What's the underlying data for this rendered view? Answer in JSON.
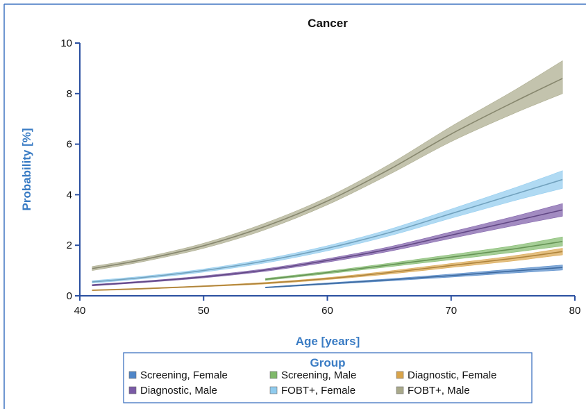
{
  "chart_data": {
    "type": "line",
    "title": "Cancer",
    "xlabel": "Age [years]",
    "ylabel": "Probability [%]",
    "xlim": [
      40,
      80
    ],
    "ylim": [
      0,
      10
    ],
    "x_ticks": [
      40,
      50,
      60,
      70,
      80
    ],
    "y_ticks": [
      0,
      2,
      4,
      6,
      8,
      10
    ],
    "grid": false,
    "legend": {
      "title": "Group",
      "placement": "bottom"
    },
    "series": [
      {
        "name": "Screening, Female",
        "color": "#4f86c8",
        "x": [
          55,
          60,
          65,
          70,
          75,
          79
        ],
        "y": [
          0.33,
          0.48,
          0.63,
          0.8,
          0.98,
          1.12
        ],
        "lower": [
          0.31,
          0.45,
          0.59,
          0.74,
          0.9,
          1.02
        ],
        "upper": [
          0.35,
          0.51,
          0.67,
          0.86,
          1.06,
          1.22
        ]
      },
      {
        "name": "Screening, Male",
        "color": "#7fb96a",
        "x": [
          55,
          60,
          65,
          70,
          75,
          79
        ],
        "y": [
          0.65,
          0.92,
          1.22,
          1.53,
          1.85,
          2.15
        ],
        "lower": [
          0.61,
          0.87,
          1.15,
          1.43,
          1.72,
          1.97
        ],
        "upper": [
          0.69,
          0.97,
          1.29,
          1.63,
          1.98,
          2.33
        ]
      },
      {
        "name": "Diagnostic, Female",
        "color": "#d9a44a",
        "x": [
          41,
          45,
          50,
          55,
          60,
          65,
          70,
          75,
          79
        ],
        "y": [
          0.22,
          0.28,
          0.38,
          0.5,
          0.68,
          0.92,
          1.2,
          1.48,
          1.75
        ],
        "lower": [
          0.2,
          0.26,
          0.36,
          0.47,
          0.64,
          0.86,
          1.12,
          1.38,
          1.62
        ],
        "upper": [
          0.24,
          0.3,
          0.4,
          0.53,
          0.72,
          0.98,
          1.28,
          1.58,
          1.88
        ]
      },
      {
        "name": "Diagnostic, Male",
        "color": "#7a5aa6",
        "x": [
          41,
          45,
          50,
          55,
          60,
          65,
          70,
          75,
          79
        ],
        "y": [
          0.42,
          0.55,
          0.75,
          1.02,
          1.4,
          1.85,
          2.4,
          2.95,
          3.4
        ],
        "lower": [
          0.39,
          0.52,
          0.71,
          0.97,
          1.33,
          1.76,
          2.27,
          2.77,
          3.15
        ],
        "upper": [
          0.45,
          0.58,
          0.79,
          1.07,
          1.47,
          1.94,
          2.53,
          3.13,
          3.65
        ]
      },
      {
        "name": "FOBT+, Female",
        "color": "#8fcbee",
        "x": [
          41,
          45,
          50,
          55,
          60,
          65,
          70,
          75,
          79
        ],
        "y": [
          0.55,
          0.72,
          1.0,
          1.38,
          1.88,
          2.5,
          3.25,
          4.0,
          4.6
        ],
        "lower": [
          0.5,
          0.67,
          0.94,
          1.3,
          1.78,
          2.37,
          3.07,
          3.75,
          4.25
        ],
        "upper": [
          0.6,
          0.77,
          1.06,
          1.46,
          1.98,
          2.63,
          3.43,
          4.25,
          4.95
        ]
      },
      {
        "name": "FOBT+, Male",
        "color": "#a9a98a",
        "x": [
          41,
          45,
          50,
          55,
          60,
          65,
          70,
          75,
          79
        ],
        "y": [
          1.08,
          1.42,
          1.98,
          2.75,
          3.75,
          5.0,
          6.4,
          7.65,
          8.6
        ],
        "lower": [
          1.0,
          1.34,
          1.88,
          2.62,
          3.6,
          4.8,
          6.1,
          7.2,
          8.0
        ],
        "upper": [
          1.16,
          1.5,
          2.08,
          2.88,
          3.9,
          5.2,
          6.7,
          8.1,
          9.3
        ]
      }
    ]
  }
}
